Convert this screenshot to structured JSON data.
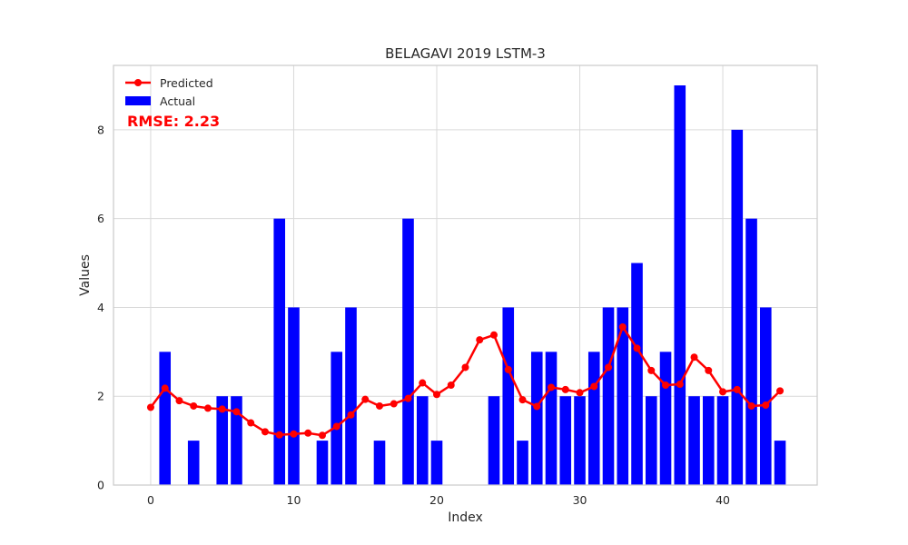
{
  "chart_data": {
    "type": "bar+line",
    "title": "BELAGAVI 2019 LSTM-3",
    "xlabel": "Index",
    "ylabel": "Values",
    "x": [
      0,
      1,
      2,
      3,
      4,
      5,
      6,
      7,
      8,
      9,
      10,
      11,
      12,
      13,
      14,
      15,
      16,
      17,
      18,
      19,
      20,
      21,
      22,
      23,
      24,
      25,
      26,
      27,
      28,
      29,
      30,
      31,
      32,
      33,
      34,
      35,
      36,
      37,
      38,
      39,
      40,
      41,
      42,
      43,
      44
    ],
    "xlim": [
      -2.6,
      46.6
    ],
    "ylim": [
      0,
      9.45
    ],
    "xticks": [
      0,
      10,
      20,
      30,
      40
    ],
    "yticks": [
      0,
      2,
      4,
      6,
      8
    ],
    "grid": true,
    "legend_position": "top-left",
    "series": [
      {
        "name": "Actual",
        "kind": "bar",
        "color": "#0000ff",
        "values": [
          0,
          3,
          0,
          1,
          0,
          2,
          2,
          0,
          0,
          6,
          4,
          0,
          1,
          3,
          4,
          0,
          1,
          0,
          6,
          2,
          1,
          0,
          0,
          0,
          2,
          4,
          1,
          3,
          3,
          2,
          2,
          3,
          4,
          4,
          5,
          2,
          3,
          9,
          2,
          2,
          2,
          8,
          6,
          4,
          1
        ]
      },
      {
        "name": "Predicted",
        "kind": "line",
        "color": "#ff0000",
        "values": [
          1.75,
          2.18,
          1.9,
          1.78,
          1.73,
          1.71,
          1.65,
          1.4,
          1.2,
          1.13,
          1.15,
          1.17,
          1.12,
          1.32,
          1.58,
          1.93,
          1.78,
          1.83,
          1.95,
          2.3,
          2.04,
          2.25,
          2.65,
          3.27,
          3.38,
          2.6,
          1.92,
          1.77,
          2.2,
          2.15,
          2.08,
          2.22,
          2.65,
          3.56,
          3.08,
          2.58,
          2.25,
          2.27,
          2.88,
          2.58,
          2.1,
          2.15,
          1.78,
          1.8,
          2.12
        ]
      }
    ],
    "annotation": {
      "text": "RMSE: 2.23",
      "color": "#ff0000"
    }
  }
}
